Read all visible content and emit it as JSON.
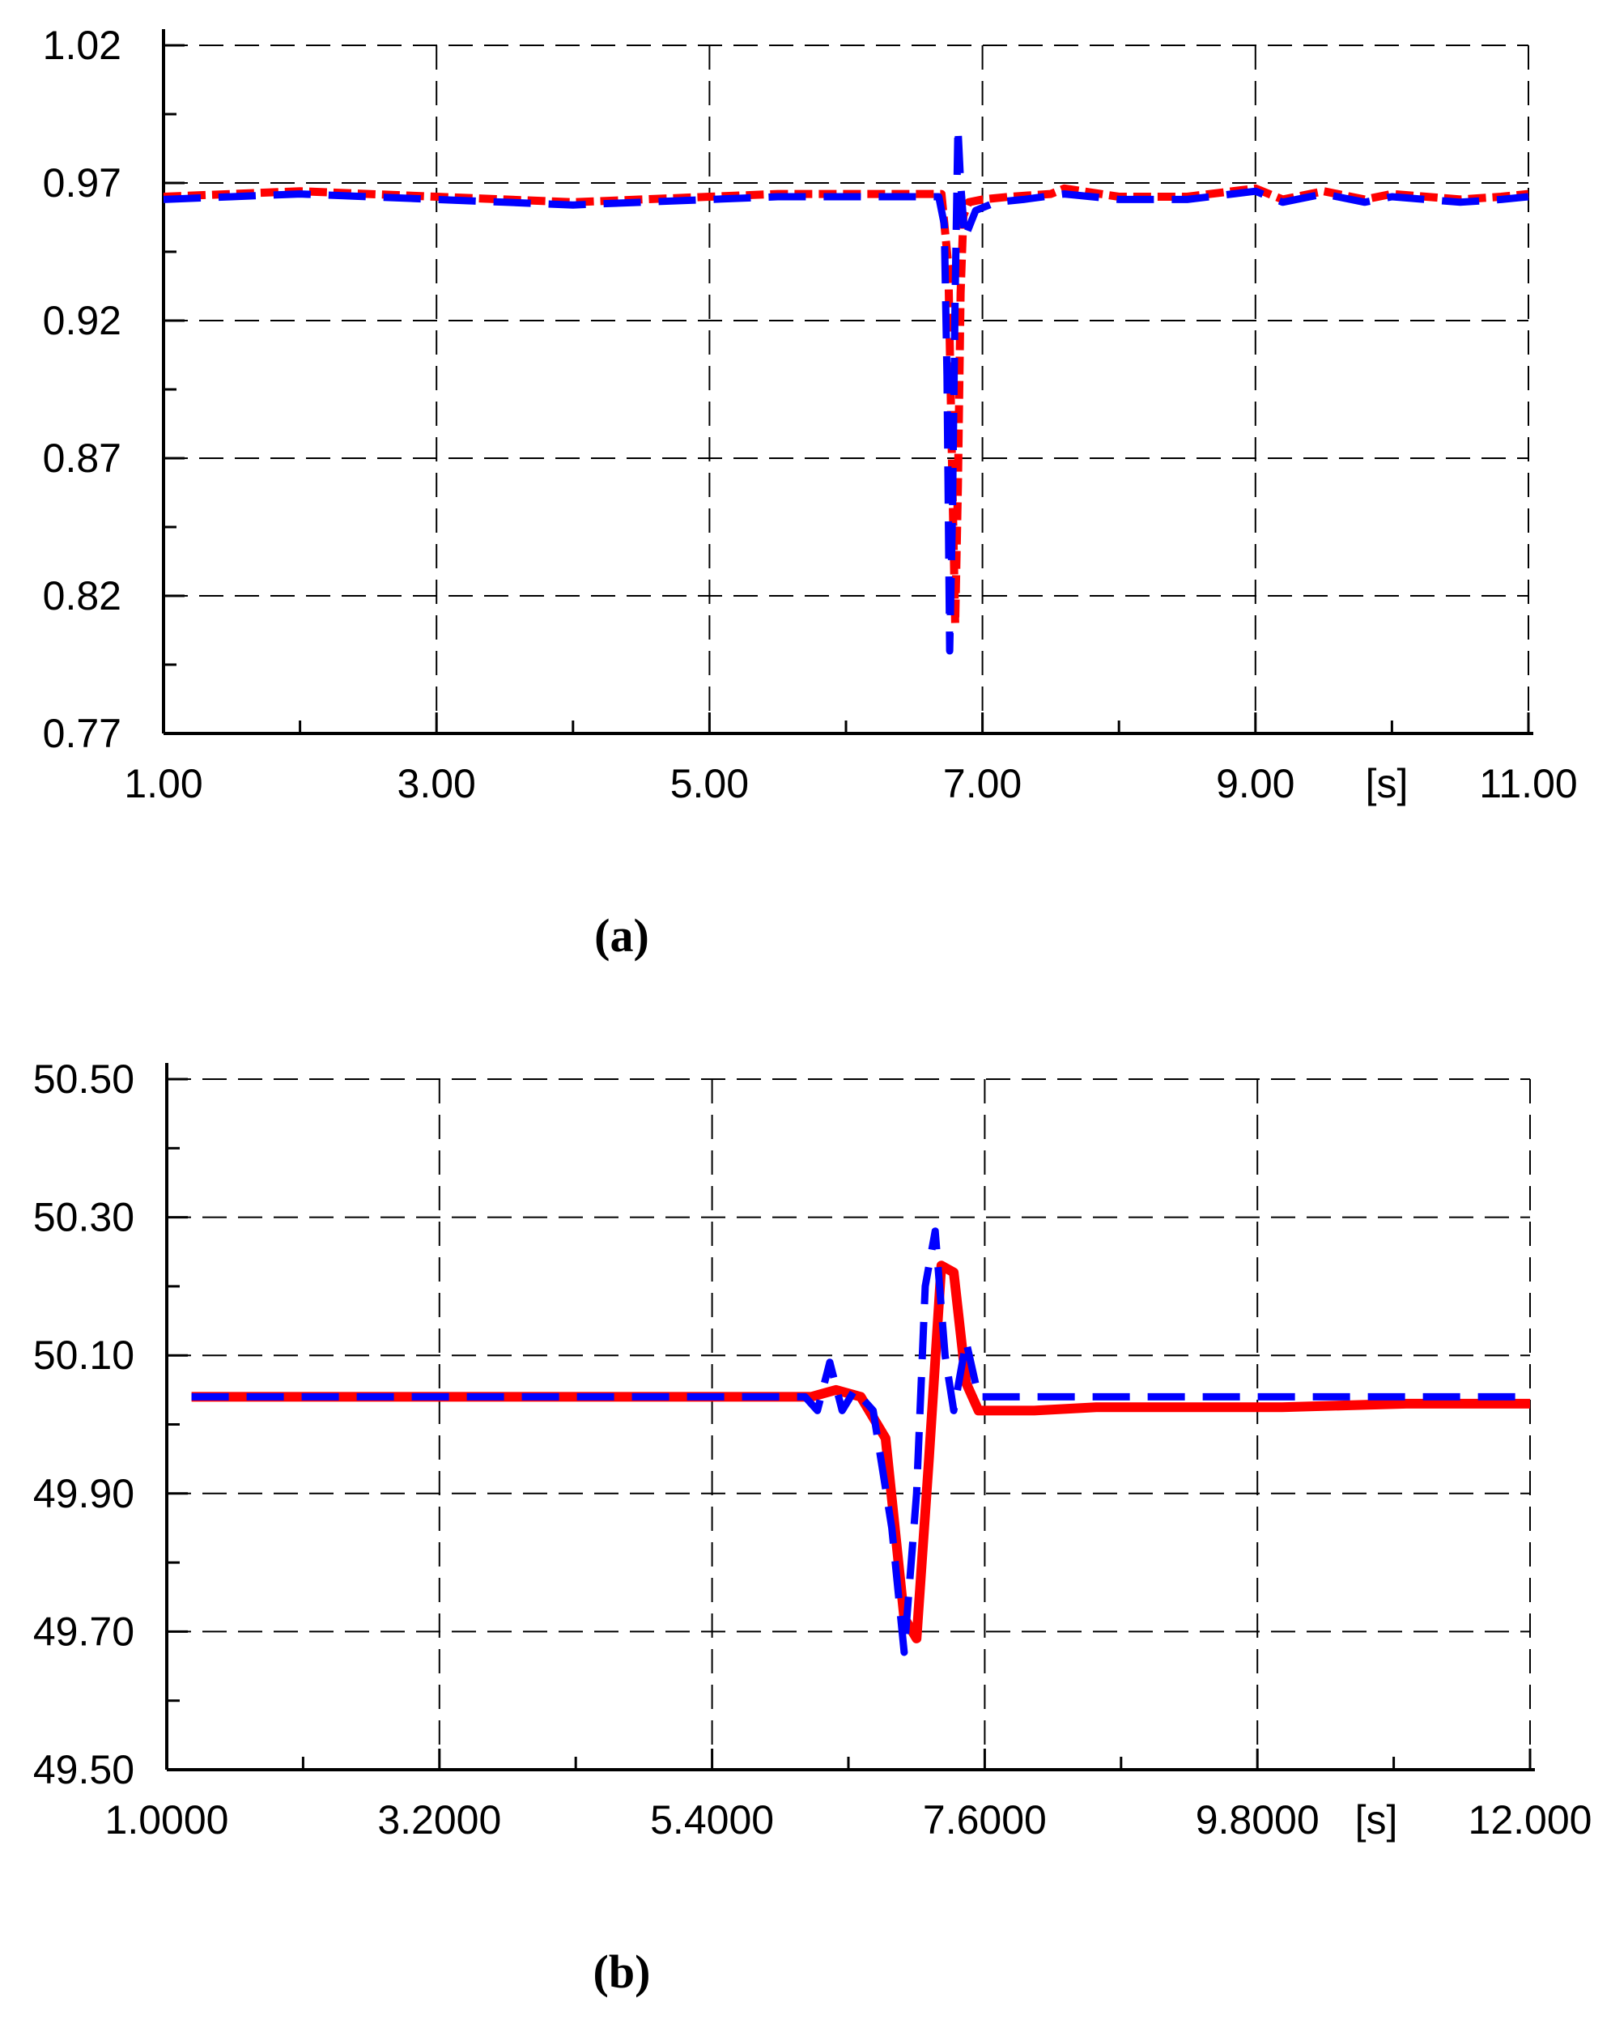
{
  "chart_data": [
    {
      "type": "line",
      "panel_label": "(a)",
      "title": "",
      "xlabel": "",
      "ylabel": "",
      "x_unit_label": "[s]",
      "xlim": [
        1.0,
        11.0
      ],
      "ylim": [
        0.77,
        1.02
      ],
      "x_ticks": [
        1.0,
        3.0,
        5.0,
        7.0,
        9.0,
        11.0
      ],
      "x_tick_labels": [
        "1.00",
        "3.00",
        "5.00",
        "7.00",
        "9.00",
        "11.00"
      ],
      "y_ticks": [
        0.77,
        0.82,
        0.87,
        0.92,
        0.97,
        1.02
      ],
      "y_tick_labels": [
        "0.77",
        "0.82",
        "0.87",
        "0.92",
        "0.97",
        "1.02"
      ],
      "grid": "dashed",
      "series": [
        {
          "color": "#ff0000",
          "style": "dense-dash",
          "x": [
            1.0,
            1.5,
            2.0,
            2.5,
            3.0,
            3.5,
            4.0,
            4.5,
            5.0,
            5.5,
            6.0,
            6.5,
            6.7,
            6.75,
            6.78,
            6.8,
            6.82,
            6.84,
            6.86,
            6.9,
            7.0,
            7.2,
            7.5,
            7.6,
            8.0,
            8.5,
            9.0,
            9.2,
            9.5,
            9.8,
            10.0,
            10.5,
            10.8,
            11.0
          ],
          "values": [
            0.965,
            0.966,
            0.967,
            0.966,
            0.965,
            0.964,
            0.963,
            0.964,
            0.965,
            0.966,
            0.966,
            0.966,
            0.966,
            0.94,
            0.86,
            0.81,
            0.86,
            0.93,
            0.958,
            0.963,
            0.964,
            0.965,
            0.966,
            0.968,
            0.965,
            0.965,
            0.968,
            0.964,
            0.967,
            0.964,
            0.966,
            0.964,
            0.965,
            0.966
          ]
        },
        {
          "color": "#0000ff",
          "style": "long-dash",
          "x": [
            1.0,
            1.5,
            2.0,
            2.5,
            3.0,
            3.5,
            4.0,
            4.5,
            5.0,
            5.5,
            6.0,
            6.5,
            6.68,
            6.72,
            6.74,
            6.76,
            6.78,
            6.8,
            6.82,
            6.84,
            6.87,
            6.95,
            7.1,
            7.3,
            7.6,
            8.0,
            8.5,
            9.0,
            9.2,
            9.5,
            9.8,
            10.0,
            10.5,
            10.8,
            11.0
          ],
          "values": [
            0.964,
            0.965,
            0.966,
            0.965,
            0.964,
            0.963,
            0.962,
            0.963,
            0.964,
            0.965,
            0.965,
            0.965,
            0.965,
            0.955,
            0.9,
            0.8,
            0.85,
            0.93,
            0.99,
            0.97,
            0.95,
            0.96,
            0.963,
            0.964,
            0.966,
            0.964,
            0.964,
            0.967,
            0.963,
            0.966,
            0.963,
            0.965,
            0.963,
            0.964,
            0.965
          ]
        }
      ]
    },
    {
      "type": "line",
      "panel_label": "(b)",
      "title": "",
      "xlabel": "",
      "ylabel": "",
      "x_unit_label": "[s]",
      "xlim": [
        1.0,
        12.0
      ],
      "ylim": [
        49.5,
        50.5
      ],
      "x_ticks": [
        1.0,
        3.2,
        5.4,
        7.6,
        9.8,
        12.0
      ],
      "x_tick_labels": [
        "1.0000",
        "3.2000",
        "5.4000",
        "7.6000",
        "9.8000",
        "12.000"
      ],
      "y_ticks": [
        49.5,
        49.7,
        49.9,
        50.1,
        50.3,
        50.5
      ],
      "y_tick_labels": [
        "49.50",
        "49.70",
        "49.90",
        "50.10",
        "50.30",
        "50.50"
      ],
      "grid": "dashed",
      "series": [
        {
          "color": "#ff0000",
          "style": "solid",
          "x": [
            1.2,
            2.0,
            3.0,
            4.0,
            5.0,
            6.0,
            6.2,
            6.4,
            6.6,
            6.8,
            6.95,
            7.05,
            7.15,
            7.25,
            7.35,
            7.45,
            7.55,
            7.7,
            8.0,
            8.5,
            9.0,
            10.0,
            11.0,
            12.0
          ],
          "values": [
            50.04,
            50.04,
            50.04,
            50.04,
            50.04,
            50.04,
            50.04,
            50.05,
            50.04,
            49.98,
            49.72,
            49.69,
            49.95,
            50.23,
            50.22,
            50.06,
            50.02,
            50.02,
            50.02,
            50.025,
            50.025,
            50.025,
            50.03,
            50.03
          ]
        },
        {
          "color": "#0000ff",
          "style": "long-dash",
          "x": [
            1.2,
            2.0,
            3.0,
            4.0,
            5.0,
            6.0,
            6.15,
            6.25,
            6.35,
            6.45,
            6.55,
            6.7,
            6.85,
            6.95,
            7.05,
            7.12,
            7.2,
            7.28,
            7.35,
            7.45,
            7.55,
            7.7,
            8.0,
            9.0,
            10.0,
            11.0,
            12.0
          ],
          "values": [
            50.04,
            50.04,
            50.04,
            50.04,
            50.04,
            50.04,
            50.04,
            50.02,
            50.09,
            50.02,
            50.05,
            50.02,
            49.85,
            49.67,
            49.9,
            50.2,
            50.28,
            50.1,
            50.02,
            50.12,
            50.04,
            50.04,
            50.04,
            50.04,
            50.04,
            50.04,
            50.04
          ]
        }
      ]
    }
  ]
}
